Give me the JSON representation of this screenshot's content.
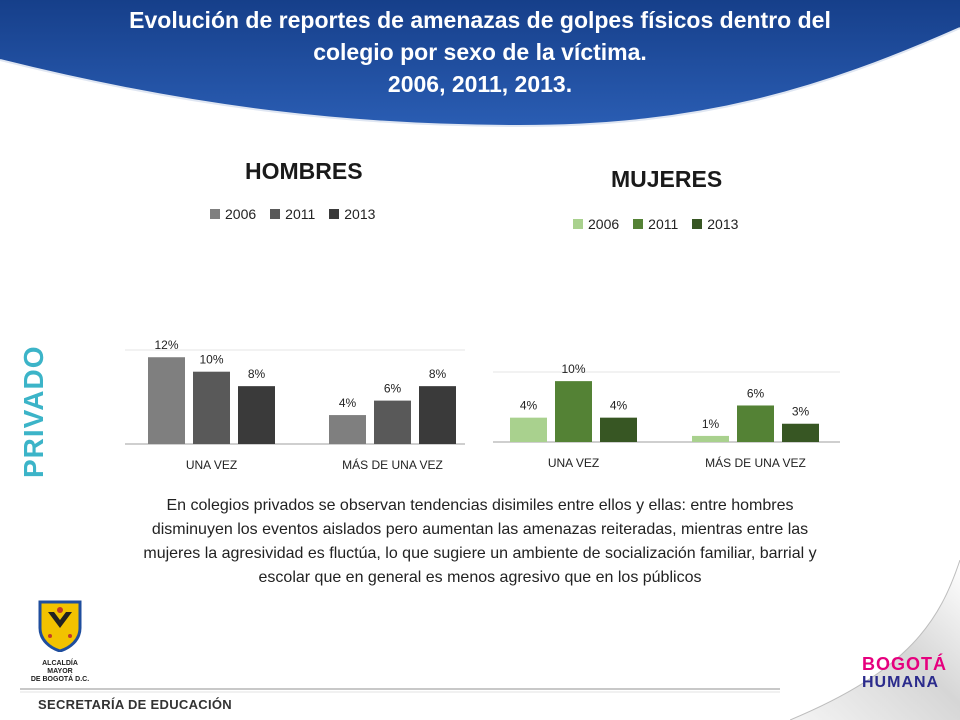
{
  "title": {
    "line1": "Evolución de reportes de amenazas de golpes físicos  dentro del",
    "line2": "colegio por sexo de la víctima.",
    "line3": "2006, 2011, 2013."
  },
  "side_label": "PRIVADO",
  "description": "En  colegios privados se observan tendencias disimiles entre ellos y ellas: entre hombres  disminuyen los eventos aislados pero aumentan las amenazas reiteradas, mientras entre las mujeres la agresividad es fluctúa, lo que sugiere un ambiente de socialización familiar, barrial y escolar que en general es menos agresivo  que en los públicos",
  "footer": {
    "department": "SECRETARÍA DE EDUCACIÓN"
  },
  "logo": {
    "caption_line1": "ALCALDÍA MAYOR",
    "caption_line2": "DE BOGOTÁ D.C."
  },
  "brand": {
    "line1": "BOGOTÁ",
    "line2": "HUMANA"
  },
  "colors": {
    "header_blue": "#1f4e9e",
    "side_label": "#3cb4c8",
    "hombres": [
      "#7f7f7f",
      "#595959",
      "#3a3a3a"
    ],
    "mujeres": [
      "#a9d18e",
      "#548235",
      "#375623"
    ]
  },
  "chart_data": [
    {
      "type": "bar",
      "title": "HOMBRES",
      "categories": [
        "UNA VEZ",
        "MÁS DE UNA  VEZ"
      ],
      "series": [
        {
          "name": "2006",
          "values": [
            12,
            4
          ],
          "labels": [
            "12%",
            "4%"
          ]
        },
        {
          "name": "2011",
          "values": [
            10,
            6
          ],
          "labels": [
            "10%",
            "6%"
          ]
        },
        {
          "name": "2013",
          "values": [
            8,
            8
          ],
          "labels": [
            "8%",
            "8%"
          ]
        }
      ],
      "ylim": [
        0,
        13
      ],
      "legend": "top",
      "grid": false
    },
    {
      "type": "bar",
      "title": "MUJERES",
      "categories": [
        "UNA VEZ",
        "MÁS DE UNA  VEZ"
      ],
      "series": [
        {
          "name": "2006",
          "values": [
            4,
            1
          ],
          "labels": [
            "4%",
            "1%"
          ]
        },
        {
          "name": "2011",
          "values": [
            10,
            6
          ],
          "labels": [
            "10%",
            "6%"
          ]
        },
        {
          "name": "2013",
          "values": [
            4,
            3
          ],
          "labels": [
            "4%",
            "3%"
          ]
        }
      ],
      "ylim": [
        0,
        11.5
      ],
      "legend": "top",
      "grid": false
    }
  ]
}
